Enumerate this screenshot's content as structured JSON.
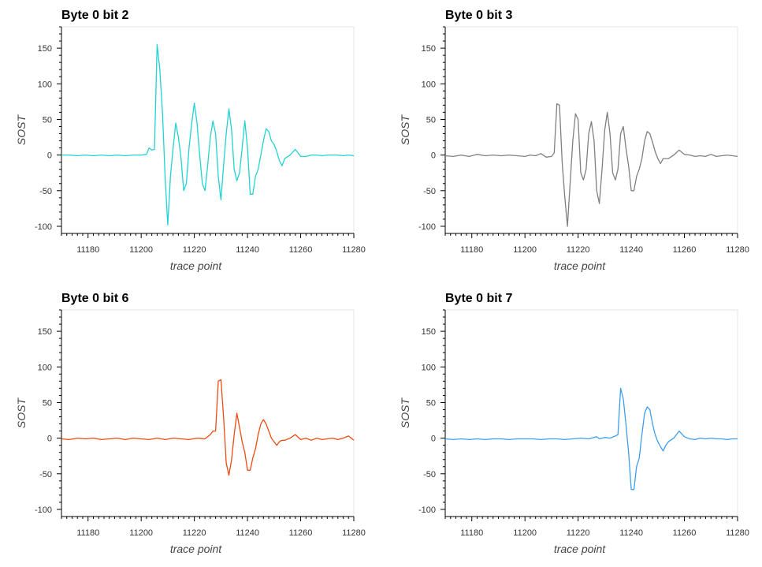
{
  "chart_data": [
    {
      "type": "line",
      "title": "Byte 0 bit 2",
      "xlabel": "trace point",
      "ylabel": "SOST",
      "xlim": [
        11170,
        11280
      ],
      "ylim": [
        -110,
        180
      ],
      "xticks": [
        11180,
        11200,
        11220,
        11240,
        11260,
        11280
      ],
      "yticks": [
        -100,
        -50,
        0,
        50,
        100,
        150
      ],
      "grid": false,
      "color": "#22d3d3",
      "series": [
        {
          "x": [
            11170,
            11173,
            11176,
            11179,
            11182,
            11185,
            11188,
            11191,
            11194,
            11197,
            11200,
            11202,
            11203,
            11204,
            11205,
            11206,
            11207,
            11208,
            11209,
            11210,
            11211,
            11212,
            11213,
            11214,
            11215,
            11216,
            11217,
            11218,
            11219,
            11220,
            11221,
            11222,
            11223,
            11224,
            11225,
            11226,
            11227,
            11228,
            11229,
            11230,
            11231,
            11232,
            11233,
            11234,
            11235,
            11236,
            11237,
            11238,
            11239,
            11240,
            11241,
            11242,
            11243,
            11244,
            11245,
            11246,
            11247,
            11248,
            11249,
            11250,
            11251,
            11252,
            11253,
            11254,
            11256,
            11258,
            11260,
            11262,
            11264,
            11266,
            11268,
            11270,
            11272,
            11274,
            11276,
            11278,
            11280
          ],
          "y": [
            0,
            0,
            -1,
            0,
            -1,
            0,
            -1,
            0,
            -1,
            0,
            0,
            1,
            10,
            7,
            8,
            155,
            120,
            60,
            -30,
            -98,
            -30,
            10,
            45,
            25,
            -5,
            -50,
            -40,
            10,
            45,
            73,
            45,
            0,
            -40,
            -50,
            -15,
            25,
            48,
            30,
            -30,
            -63,
            -15,
            30,
            65,
            35,
            -20,
            -36,
            -25,
            10,
            48,
            10,
            -55,
            -55,
            -30,
            -20,
            0,
            20,
            37,
            33,
            20,
            15,
            5,
            -8,
            -15,
            -5,
            0,
            8,
            -2,
            -2,
            0,
            0,
            -1,
            0,
            0,
            0,
            -1,
            0,
            -1
          ]
        }
      ]
    },
    {
      "type": "line",
      "title": "Byte 0 bit 3",
      "xlabel": "trace point",
      "ylabel": "SOST",
      "xlim": [
        11170,
        11280
      ],
      "ylim": [
        -110,
        180
      ],
      "xticks": [
        11180,
        11200,
        11220,
        11240,
        11260,
        11280
      ],
      "yticks": [
        -100,
        -50,
        0,
        50,
        100,
        150
      ],
      "grid": false,
      "color": "#808080",
      "series": [
        {
          "x": [
            11170,
            11173,
            11176,
            11179,
            11182,
            11185,
            11188,
            11191,
            11194,
            11197,
            11200,
            11202,
            11204,
            11206,
            11208,
            11210,
            11211,
            11212,
            11213,
            11214,
            11215,
            11216,
            11217,
            11218,
            11219,
            11220,
            11221,
            11222,
            11223,
            11224,
            11225,
            11226,
            11227,
            11228,
            11229,
            11230,
            11231,
            11232,
            11233,
            11234,
            11235,
            11236,
            11237,
            11238,
            11239,
            11240,
            11241,
            11242,
            11243,
            11244,
            11245,
            11246,
            11247,
            11248,
            11249,
            11250,
            11251,
            11252,
            11254,
            11256,
            11258,
            11260,
            11262,
            11264,
            11266,
            11268,
            11270,
            11272,
            11274,
            11276,
            11278,
            11280
          ],
          "y": [
            -1,
            -2,
            0,
            -2,
            1,
            -1,
            0,
            -1,
            0,
            -1,
            -2,
            0,
            -1,
            2,
            -3,
            -2,
            3,
            72,
            70,
            -10,
            -60,
            -100,
            -40,
            20,
            58,
            50,
            -25,
            -35,
            -20,
            30,
            47,
            20,
            -50,
            -68,
            -20,
            35,
            60,
            30,
            -25,
            -35,
            -20,
            30,
            40,
            10,
            -15,
            -50,
            -50,
            -30,
            -20,
            -5,
            20,
            33,
            30,
            18,
            5,
            -5,
            -12,
            -5,
            -5,
            0,
            7,
            1,
            0,
            -2,
            -1,
            -2,
            1,
            -2,
            -1,
            0,
            -1,
            -2
          ]
        }
      ]
    },
    {
      "type": "line",
      "title": "Byte 0 bit 6",
      "xlabel": "trace point",
      "ylabel": "SOST",
      "xlim": [
        11170,
        11280
      ],
      "ylim": [
        -110,
        180
      ],
      "xticks": [
        11180,
        11200,
        11220,
        11240,
        11260,
        11280
      ],
      "yticks": [
        -100,
        -50,
        0,
        50,
        100,
        150
      ],
      "grid": false,
      "color": "#ee4b11",
      "series": [
        {
          "x": [
            11170,
            11173,
            11176,
            11179,
            11182,
            11185,
            11188,
            11191,
            11194,
            11197,
            11200,
            11203,
            11206,
            11209,
            11212,
            11215,
            11218,
            11221,
            11224,
            11226,
            11227,
            11228,
            11229,
            11230,
            11231,
            11232,
            11233,
            11234,
            11235,
            11236,
            11237,
            11238,
            11239,
            11240,
            11241,
            11242,
            11243,
            11244,
            11245,
            11246,
            11247,
            11248,
            11249,
            11250,
            11251,
            11252,
            11253,
            11254,
            11256,
            11258,
            11260,
            11262,
            11264,
            11266,
            11268,
            11270,
            11272,
            11274,
            11276,
            11278,
            11280
          ],
          "y": [
            -1,
            -2,
            0,
            -1,
            0,
            -2,
            -1,
            0,
            -2,
            0,
            -1,
            -2,
            0,
            -2,
            0,
            -1,
            -2,
            0,
            -1,
            5,
            10,
            10,
            80,
            82,
            30,
            -35,
            -52,
            -30,
            5,
            35,
            15,
            -5,
            -20,
            -45,
            -45,
            -28,
            -15,
            5,
            20,
            26,
            20,
            10,
            0,
            -5,
            -10,
            -5,
            -3,
            -3,
            0,
            5,
            -2,
            0,
            -3,
            0,
            -2,
            -1,
            0,
            -2,
            0,
            3,
            -3
          ]
        }
      ]
    },
    {
      "type": "line",
      "title": "Byte 0 bit 7",
      "xlabel": "trace point",
      "ylabel": "SOST",
      "xlim": [
        11170,
        11280
      ],
      "ylim": [
        -110,
        180
      ],
      "xticks": [
        11180,
        11200,
        11220,
        11240,
        11260,
        11280
      ],
      "yticks": [
        -100,
        -50,
        0,
        50,
        100,
        150
      ],
      "grid": false,
      "color": "#3d9ef0",
      "series": [
        {
          "x": [
            11170,
            11173,
            11176,
            11179,
            11182,
            11185,
            11188,
            11191,
            11194,
            11197,
            11200,
            11203,
            11206,
            11209,
            11212,
            11215,
            11218,
            11221,
            11224,
            11227,
            11228,
            11230,
            11232,
            11234,
            11235,
            11236,
            11237,
            11238,
            11239,
            11240,
            11241,
            11242,
            11243,
            11244,
            11245,
            11246,
            11247,
            11248,
            11249,
            11250,
            11251,
            11252,
            11253,
            11254,
            11256,
            11258,
            11260,
            11262,
            11264,
            11266,
            11268,
            11270,
            11272,
            11274,
            11276,
            11278,
            11280
          ],
          "y": [
            -1,
            -2,
            -1,
            -2,
            -1,
            -2,
            -1,
            -1,
            -2,
            -1,
            -1,
            -1,
            -2,
            -1,
            -1,
            -2,
            -1,
            0,
            -1,
            2,
            -1,
            1,
            0,
            3,
            5,
            70,
            55,
            20,
            -20,
            -72,
            -72,
            -40,
            -28,
            5,
            35,
            44,
            40,
            20,
            5,
            -5,
            -12,
            -18,
            -10,
            -5,
            0,
            10,
            2,
            -1,
            -2,
            0,
            -1,
            0,
            -1,
            -1,
            -2,
            -1,
            -1
          ]
        }
      ]
    }
  ]
}
